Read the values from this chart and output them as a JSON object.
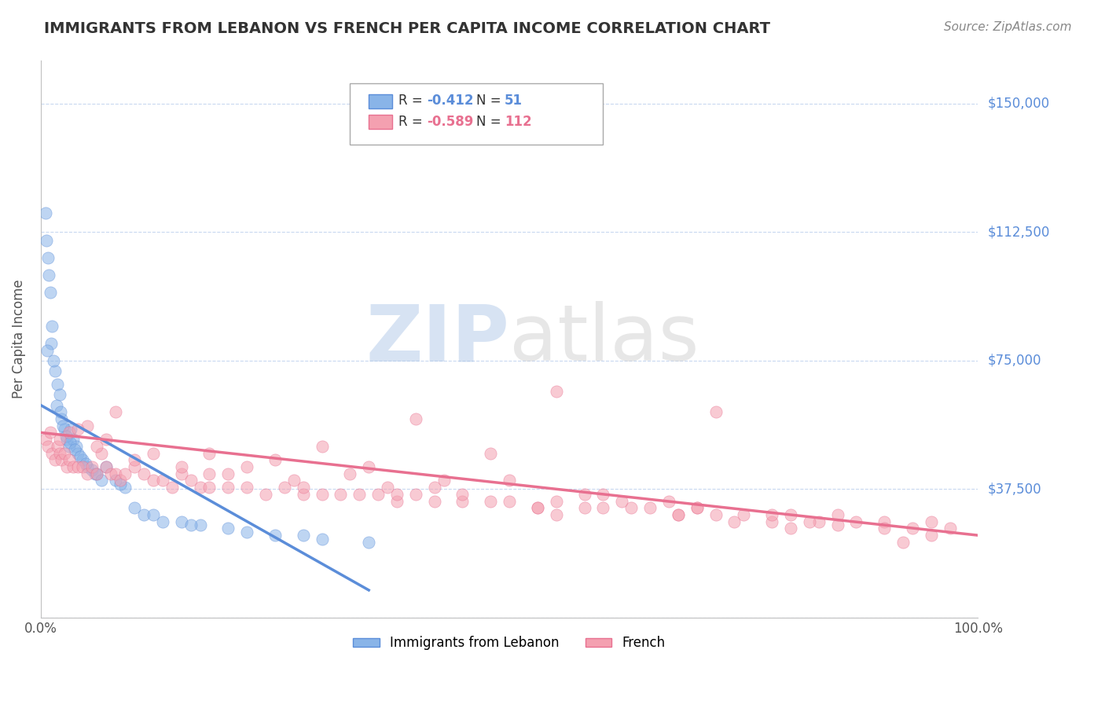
{
  "title": "IMMIGRANTS FROM LEBANON VS FRENCH PER CAPITA INCOME CORRELATION CHART",
  "source": "Source: ZipAtlas.com",
  "xlabel": "",
  "ylabel": "Per Capita Income",
  "xlim": [
    0,
    100
  ],
  "ylim": [
    0,
    162500
  ],
  "yticks": [
    0,
    37500,
    75000,
    112500,
    150000
  ],
  "ytick_labels": [
    "",
    "$37,500",
    "$75,000",
    "$112,500",
    "$150,000"
  ],
  "xtick_labels": [
    "0.0%",
    "100.0%"
  ],
  "legend_blue_r": "-0.412",
  "legend_blue_n": "51",
  "legend_pink_r": "-0.589",
  "legend_pink_n": "112",
  "blue_color": "#89b4e8",
  "pink_color": "#f4a0b0",
  "blue_line_color": "#5b8dd9",
  "pink_line_color": "#e87090",
  "title_color": "#333333",
  "axis_label_color": "#555555",
  "right_tick_color": "#5b8dd9",
  "watermark_color_zip": "#b0c8e8",
  "watermark_color_atlas": "#c8c8c8",
  "blue_scatter_x": [
    0.5,
    0.8,
    1.0,
    1.2,
    1.5,
    1.8,
    2.0,
    2.2,
    2.5,
    2.8,
    3.0,
    3.2,
    3.5,
    3.8,
    4.0,
    4.5,
    5.0,
    5.5,
    6.0,
    7.0,
    8.0,
    9.0,
    10.0,
    11.0,
    13.0,
    15.0,
    17.0,
    20.0,
    25.0,
    30.0,
    35.0,
    0.6,
    0.9,
    1.1,
    1.4,
    1.7,
    2.1,
    2.4,
    2.7,
    3.1,
    3.6,
    4.2,
    4.8,
    5.8,
    6.5,
    8.5,
    12.0,
    16.0,
    22.0,
    28.0,
    0.7
  ],
  "blue_scatter_y": [
    118000,
    105000,
    95000,
    85000,
    72000,
    68000,
    65000,
    58000,
    55000,
    52000,
    50000,
    55000,
    52000,
    50000,
    48000,
    46000,
    44000,
    43000,
    42000,
    44000,
    40000,
    38000,
    32000,
    30000,
    28000,
    28000,
    27000,
    26000,
    24000,
    23000,
    22000,
    110000,
    100000,
    80000,
    75000,
    62000,
    60000,
    56000,
    53000,
    51000,
    49000,
    47000,
    45000,
    42000,
    40000,
    39000,
    30000,
    27000,
    25000,
    24000,
    78000
  ],
  "pink_scatter_x": [
    0.5,
    0.8,
    1.0,
    1.2,
    1.5,
    1.8,
    2.0,
    2.2,
    2.5,
    2.8,
    3.0,
    3.5,
    4.0,
    4.5,
    5.0,
    5.5,
    6.0,
    6.5,
    7.0,
    7.5,
    8.0,
    8.5,
    9.0,
    10.0,
    11.0,
    12.0,
    13.0,
    14.0,
    15.0,
    16.0,
    17.0,
    18.0,
    20.0,
    22.0,
    24.0,
    26.0,
    28.0,
    30.0,
    32.0,
    34.0,
    36.0,
    38.0,
    40.0,
    42.0,
    45.0,
    48.0,
    50.0,
    53.0,
    55.0,
    58.0,
    60.0,
    63.0,
    65.0,
    68.0,
    70.0,
    72.0,
    75.0,
    78.0,
    80.0,
    83.0,
    85.0,
    87.0,
    90.0,
    93.0,
    95.0,
    97.0,
    72.0,
    82.0,
    55.0,
    40.0,
    30.0,
    48.0,
    25.0,
    35.0,
    18.0,
    8.0,
    5.0,
    3.0,
    6.0,
    10.0,
    15.0,
    20.0,
    27.0,
    42.0,
    58.0,
    67.0,
    78.0,
    90.0,
    95.0,
    50.0,
    33.0,
    43.0,
    60.0,
    70.0,
    55.0,
    38.0,
    28.0,
    22.0,
    62.0,
    85.0,
    45.0,
    74.0,
    53.0,
    37.0,
    18.0,
    7.0,
    4.0,
    12.0,
    68.0,
    80.0,
    92.0,
    2.0
  ],
  "pink_scatter_y": [
    52000,
    50000,
    54000,
    48000,
    46000,
    50000,
    48000,
    46000,
    48000,
    44000,
    46000,
    44000,
    44000,
    44000,
    42000,
    44000,
    42000,
    48000,
    44000,
    42000,
    42000,
    40000,
    42000,
    44000,
    42000,
    40000,
    40000,
    38000,
    42000,
    40000,
    38000,
    38000,
    38000,
    38000,
    36000,
    38000,
    36000,
    36000,
    36000,
    36000,
    36000,
    34000,
    36000,
    34000,
    34000,
    34000,
    34000,
    32000,
    34000,
    32000,
    32000,
    32000,
    32000,
    30000,
    32000,
    30000,
    30000,
    28000,
    30000,
    28000,
    30000,
    28000,
    28000,
    26000,
    28000,
    26000,
    60000,
    28000,
    66000,
    58000,
    50000,
    48000,
    46000,
    44000,
    48000,
    60000,
    56000,
    54000,
    50000,
    46000,
    44000,
    42000,
    40000,
    38000,
    36000,
    34000,
    30000,
    26000,
    24000,
    40000,
    42000,
    40000,
    36000,
    32000,
    30000,
    36000,
    38000,
    44000,
    34000,
    27000,
    36000,
    28000,
    32000,
    38000,
    42000,
    52000,
    55000,
    48000,
    30000,
    26000,
    22000,
    52000
  ],
  "blue_trend_x": [
    0,
    35
  ],
  "blue_trend_y": [
    62000,
    8000
  ],
  "pink_trend_x": [
    0,
    100
  ],
  "pink_trend_y": [
    54000,
    24000
  ],
  "background_color": "#ffffff",
  "grid_color": "#c8d8f0",
  "border_color": "#c0c0c0"
}
